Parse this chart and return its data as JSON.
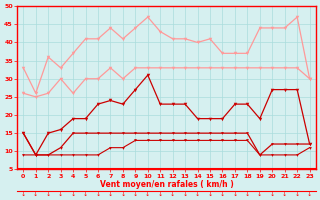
{
  "xlabel": "Vent moyen/en rafales ( km/h )",
  "xlim": [
    -0.5,
    23.5
  ],
  "ylim": [
    5,
    50
  ],
  "yticks": [
    5,
    10,
    15,
    20,
    25,
    30,
    35,
    40,
    45,
    50
  ],
  "xticks": [
    0,
    1,
    2,
    3,
    4,
    5,
    6,
    7,
    8,
    9,
    10,
    11,
    12,
    13,
    14,
    15,
    16,
    17,
    18,
    19,
    20,
    21,
    22,
    23
  ],
  "background_color": "#d6f0f0",
  "grid_color": "#aadddd",
  "line1_color": "#ff9999",
  "line2_color": "#ff9999",
  "line3_color": "#cc0000",
  "line4_color": "#cc0000",
  "line5_color": "#cc0000",
  "line1_data": [
    33,
    26,
    36,
    33,
    37,
    41,
    41,
    44,
    41,
    44,
    47,
    43,
    41,
    41,
    40,
    41,
    37,
    37,
    37,
    44,
    44,
    44,
    47,
    30
  ],
  "line2_data": [
    26,
    25,
    26,
    30,
    26,
    30,
    30,
    33,
    30,
    33,
    33,
    33,
    33,
    33,
    33,
    33,
    33,
    33,
    33,
    33,
    33,
    33,
    33,
    30
  ],
  "line3_data": [
    15,
    9,
    15,
    16,
    19,
    19,
    23,
    24,
    23,
    27,
    31,
    23,
    23,
    23,
    19,
    19,
    19,
    23,
    23,
    19,
    27,
    27,
    27,
    12
  ],
  "line4_data": [
    15,
    9,
    9,
    11,
    15,
    15,
    15,
    15,
    15,
    15,
    15,
    15,
    15,
    15,
    15,
    15,
    15,
    15,
    15,
    9,
    12,
    12,
    12,
    12
  ],
  "line5_data": [
    9,
    9,
    9,
    9,
    9,
    9,
    9,
    11,
    11,
    13,
    13,
    13,
    13,
    13,
    13,
    13,
    13,
    13,
    13,
    9,
    9,
    9,
    9,
    11
  ]
}
